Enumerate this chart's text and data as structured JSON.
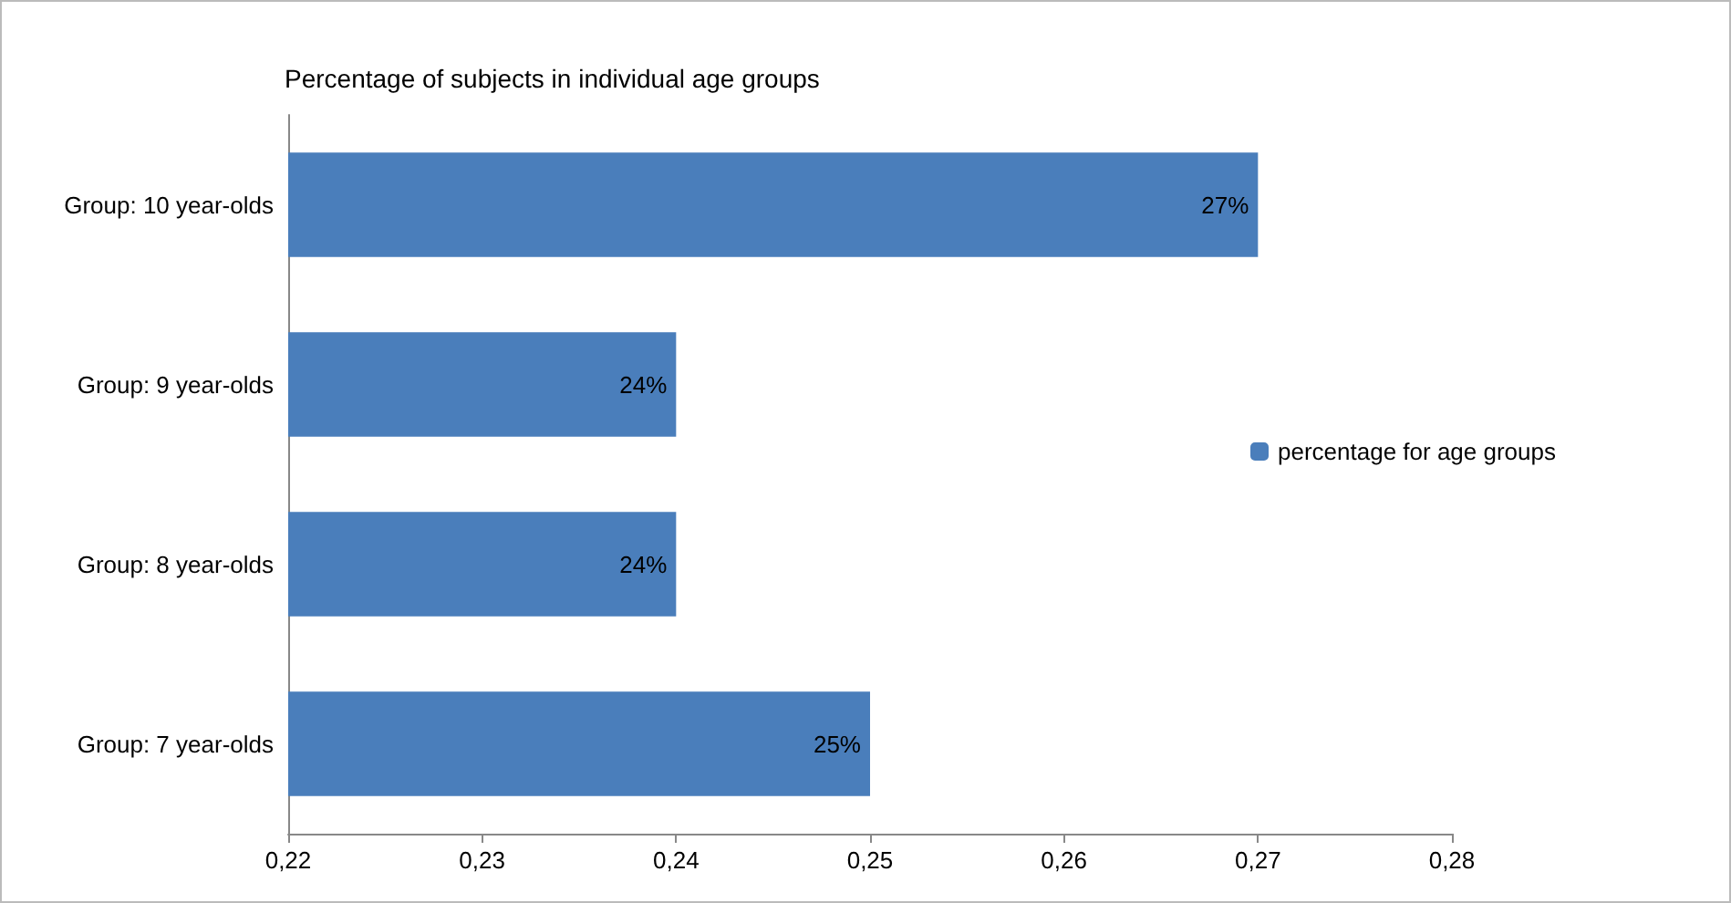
{
  "chart_data": {
    "type": "bar",
    "orientation": "horizontal",
    "title": "Percentage of subjects in individual age groups",
    "categories": [
      "Group: 10 year-olds",
      "Group: 9 year-olds",
      "Group: 8 year-olds",
      "Group: 7 year-olds"
    ],
    "series": [
      {
        "name": "percentage for age groups",
        "color": "#4a7ebb",
        "values": [
          0.27,
          0.24,
          0.24,
          0.25
        ],
        "value_labels": [
          "27%",
          "24%",
          "24%",
          "25%"
        ]
      }
    ],
    "xlim": [
      0.22,
      0.28
    ],
    "xticks": [
      {
        "value": 0.22,
        "label": "0,22"
      },
      {
        "value": 0.23,
        "label": "0,23"
      },
      {
        "value": 0.24,
        "label": "0,24"
      },
      {
        "value": 0.25,
        "label": "0,25"
      },
      {
        "value": 0.26,
        "label": "0,26"
      },
      {
        "value": 0.27,
        "label": "0,27"
      },
      {
        "value": 0.28,
        "label": "0,28"
      }
    ],
    "grid": false,
    "legend": "right"
  }
}
